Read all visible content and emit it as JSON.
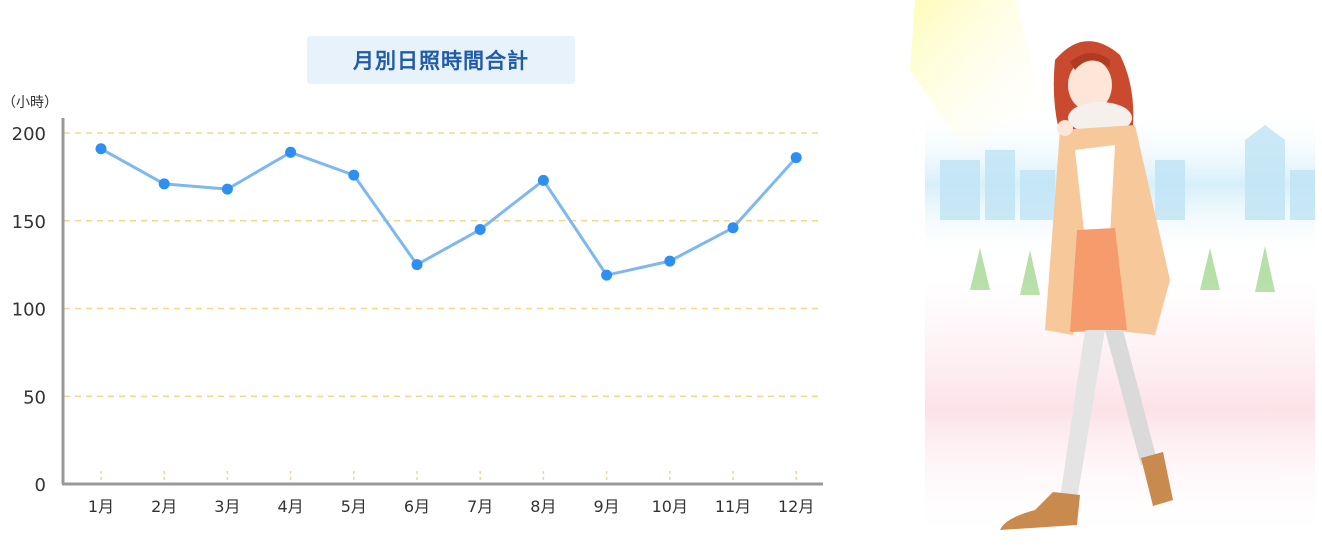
{
  "chart_data": {
    "type": "line",
    "title": "月別日照時間合計",
    "ylabel": "（小時）",
    "xlabel": "",
    "categories": [
      "1月",
      "2月",
      "3月",
      "4月",
      "5月",
      "6月",
      "7月",
      "8月",
      "9月",
      "10月",
      "11月",
      "12月"
    ],
    "series": [
      {
        "values": [
          191,
          171,
          168,
          189,
          176,
          125,
          145,
          173,
          119,
          127,
          146,
          186
        ]
      }
    ],
    "ylim": [
      0,
      200
    ],
    "yticks": [
      "0",
      "50",
      "100",
      "150",
      "200"
    ],
    "grid": true,
    "legend": "none",
    "colors": {
      "line": "#7fb8ee",
      "point": "#2d8ff0",
      "grid": "#f3d88a",
      "axis": "#999999"
    }
  }
}
